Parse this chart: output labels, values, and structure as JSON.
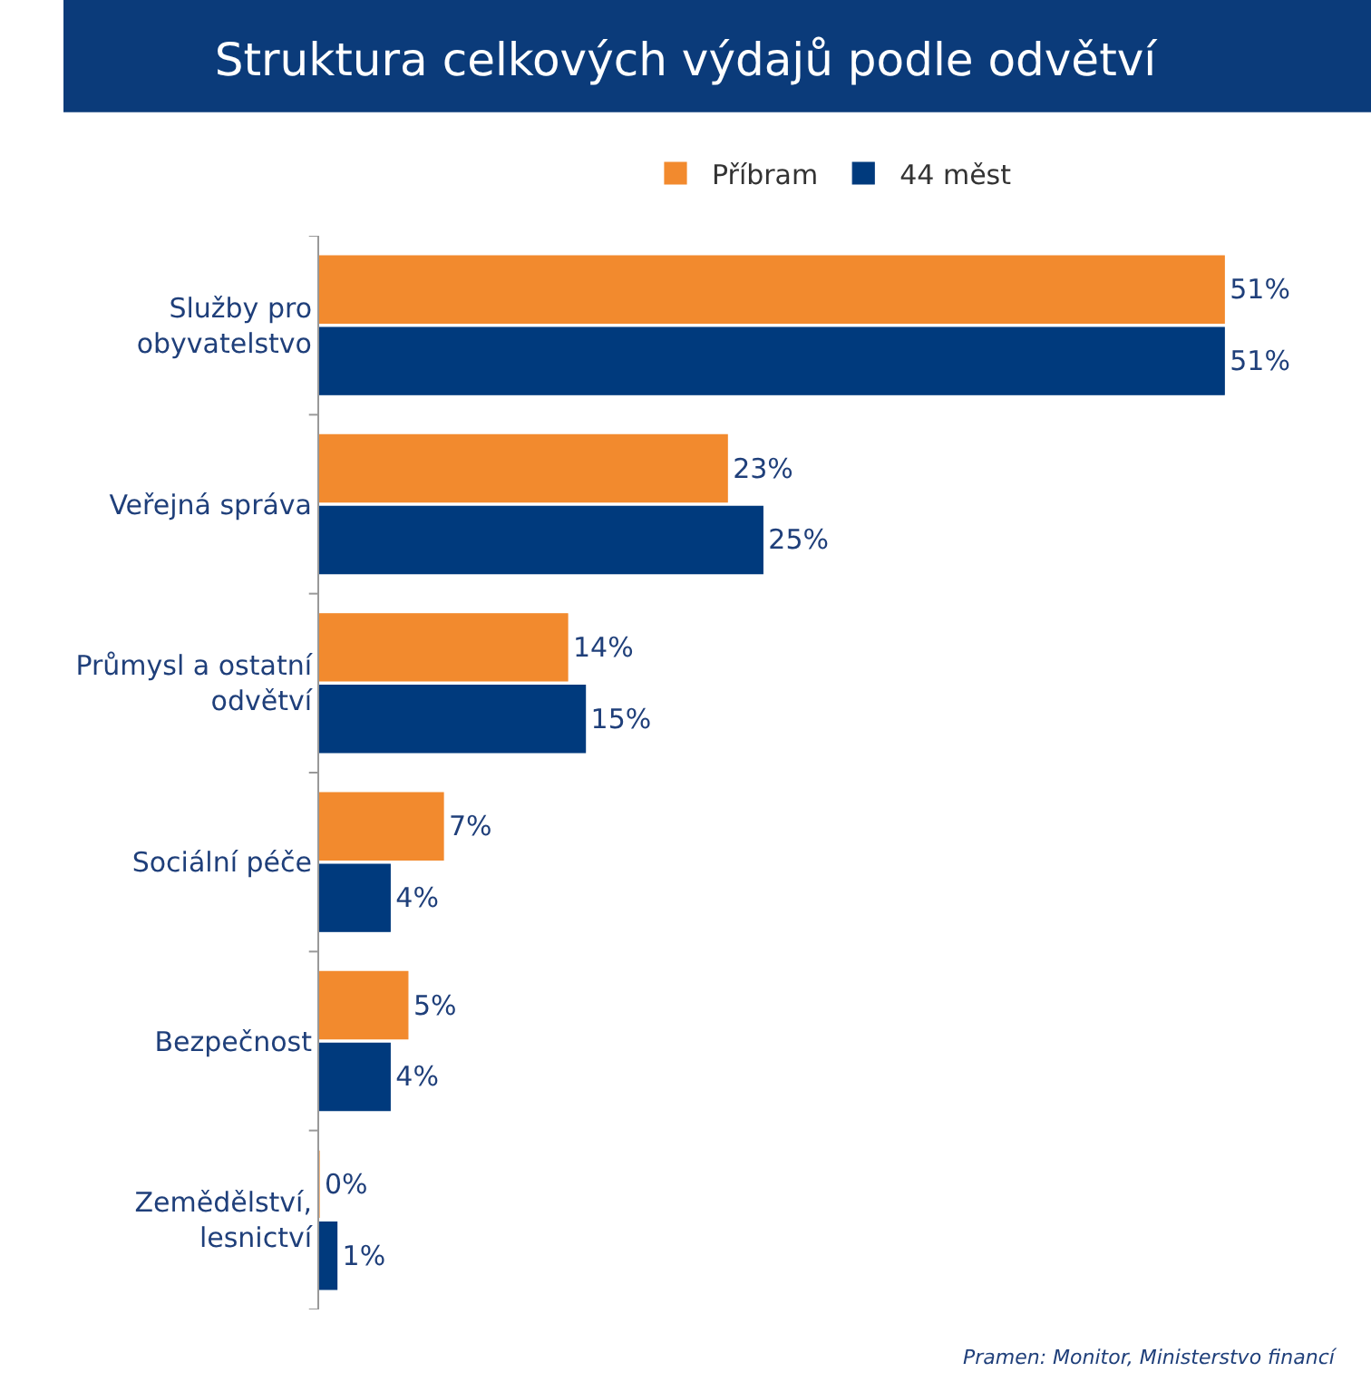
{
  "chart_data": {
    "type": "bar",
    "orientation": "horizontal",
    "title": "Struktura celkových výdajů podle odvětví",
    "categories": [
      "Služby pro obyvatelstvo",
      "Veřejná správa",
      "Průmysl a ostatní odvětví",
      "Sociální péče",
      "Bezpečnost",
      "Zemědělství, lesnictví"
    ],
    "series": [
      {
        "name": "Příbram",
        "color": "#f28a2e",
        "values": [
          51,
          23,
          14,
          7,
          5,
          0
        ],
        "value_labels": [
          "51%",
          "23%",
          "14%",
          "7%",
          "5%",
          "0%"
        ]
      },
      {
        "name": "44 měst",
        "color": "#003a7d",
        "values": [
          51,
          25,
          15,
          4,
          4,
          1
        ],
        "value_labels": [
          "51%",
          "25%",
          "15%",
          "4%",
          "4%",
          "1%"
        ]
      }
    ],
    "legend": "top",
    "annotations": [
      "Pramen: Monitor, Ministerstvo financí"
    ]
  }
}
